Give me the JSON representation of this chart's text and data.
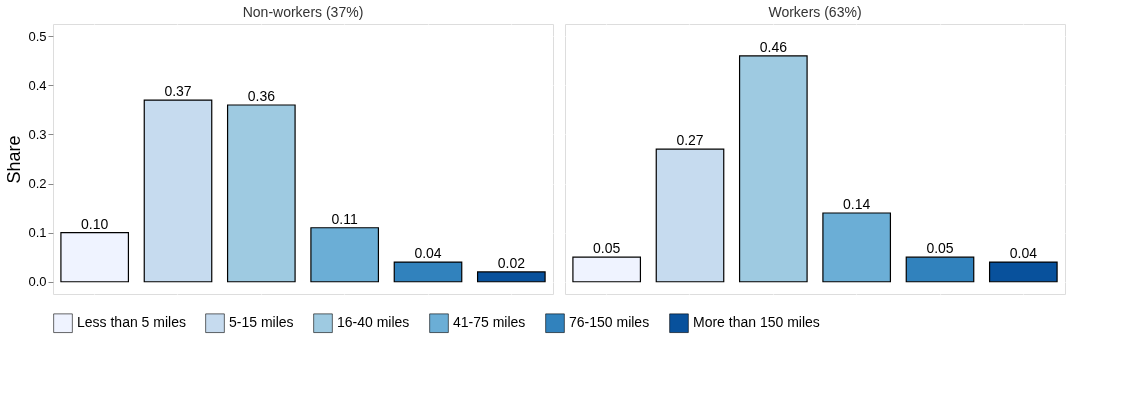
{
  "chart_data": [
    {
      "type": "bar",
      "title": "Non-workers (37%)",
      "ylabel": "Share",
      "categories": [
        null
      ],
      "ylim": [
        -0.025,
        0.525
      ],
      "yticks": [
        {
          "value": 0,
          "label": "0.0"
        },
        0.1,
        0.2,
        0.3,
        0.4,
        0.5
      ],
      "grid": true,
      "legend": "bottom",
      "tick_labels": "y",
      "series": [
        {
          "name": "Less than 5 miles",
          "color": "#eff3ff",
          "values": [
            0.1
          ],
          "value_labels": [
            "0.10"
          ]
        },
        {
          "name": "5-15 miles",
          "color": "#c6dbef",
          "values": [
            0.37
          ],
          "value_labels": [
            "0.37"
          ]
        },
        {
          "name": "16-40 miles",
          "color": "#9ecae1",
          "values": [
            0.36
          ],
          "value_labels": [
            "0.36"
          ]
        },
        {
          "name": "41-75 miles",
          "color": "#6baed6",
          "values": [
            0.11
          ],
          "value_labels": [
            "0.11"
          ]
        },
        {
          "name": "76-150 miles",
          "color": "#3182bd",
          "values": [
            0.04
          ],
          "value_labels": [
            "0.04"
          ]
        },
        {
          "name": "More than 150 miles",
          "color": "#08519c",
          "values": [
            0.02
          ],
          "value_labels": [
            "0.02"
          ]
        }
      ]
    },
    {
      "type": "bar",
      "title": "Workers (63%)",
      "categories": [
        null,
        null,
        null,
        null,
        null,
        null
      ],
      "ylim": [
        -0.025,
        0.525
      ],
      "yticks": [
        0,
        0.1,
        0.2,
        0.3,
        0.4,
        0.5
      ],
      "grid": true,
      "tick_labels": false,
      "values": [
        0.05,
        0.27,
        0.46,
        0.14,
        0.05,
        0.04
      ],
      "value_labels": [
        "0.05",
        "0.27",
        "0.46",
        "0.14",
        "0.05",
        "0.04"
      ],
      "colors": [
        "#eff3ff",
        "#c6dbef",
        "#9ecae1",
        "#6baed6",
        "#3182bd",
        "#08519c"
      ]
    }
  ]
}
